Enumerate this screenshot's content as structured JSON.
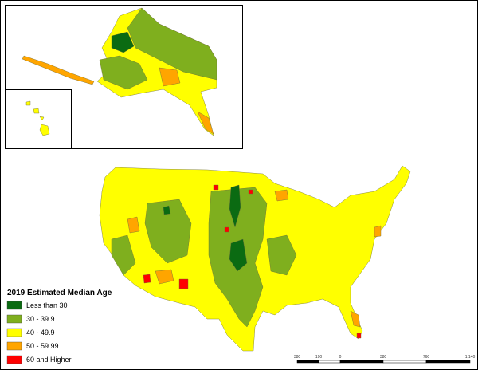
{
  "legend": {
    "title": "2019 Estimated Median Age",
    "items": [
      {
        "label": "Less than 30",
        "color": "#0b6b12"
      },
      {
        "label": "30 - 39.9",
        "color": "#7faf1e"
      },
      {
        "label": "40 - 49.9",
        "color": "#ffff00"
      },
      {
        "label": "50 - 59.99",
        "color": "#ffa500"
      },
      {
        "label": "60 and Higher",
        "color": "#ff0000"
      }
    ]
  },
  "scale_bar": {
    "labels": [
      "380",
      "190",
      "0",
      "380",
      "760",
      "1,140"
    ]
  }
}
